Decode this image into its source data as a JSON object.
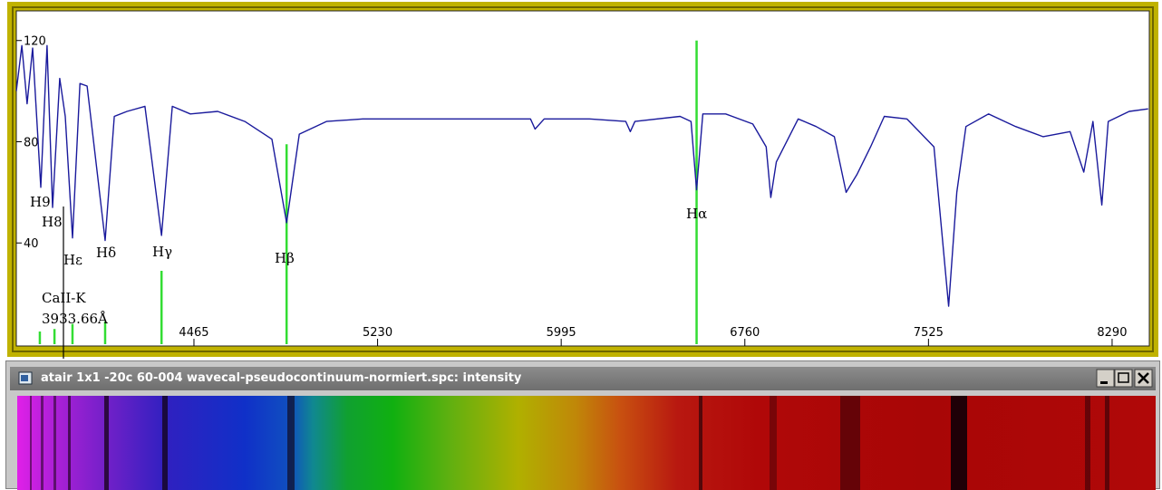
{
  "chart_data": {
    "type": "line",
    "x": [
      3725,
      3748,
      3770,
      3793,
      3827,
      3853,
      3876,
      3906,
      3929,
      3959,
      3990,
      4020,
      4095,
      4133,
      4186,
      4261,
      4330,
      4375,
      4450,
      4564,
      4677,
      4790,
      4851,
      4904,
      5017,
      5168,
      5357,
      5546,
      5735,
      5867,
      5886,
      5924,
      6113,
      6264,
      6283,
      6302,
      6490,
      6536,
      6559,
      6585,
      6680,
      6793,
      6849,
      6868,
      6891,
      6982,
      7057,
      7133,
      7182,
      7227,
      7284,
      7341,
      7435,
      7548,
      7609,
      7643,
      7681,
      7775,
      7888,
      8002,
      8115,
      8172,
      8210,
      8247,
      8274,
      8361,
      8440
    ],
    "values": [
      100,
      118,
      95,
      117,
      62,
      118,
      54,
      105,
      90,
      42,
      103,
      102,
      41,
      90,
      92,
      94,
      43,
      94,
      91,
      92,
      88,
      81,
      48,
      83,
      88,
      89,
      89,
      89,
      89,
      89,
      85,
      89,
      89,
      88,
      84,
      88,
      90,
      88,
      61,
      91,
      91,
      87,
      78,
      58,
      72,
      89,
      86,
      82,
      60,
      67,
      78,
      90,
      89,
      78,
      15,
      60,
      86,
      91,
      86,
      82,
      84,
      68,
      88,
      55,
      88,
      92,
      93
    ],
    "color": "#1a1a9c",
    "reference_lines": {
      "x": [
        3823,
        3884,
        3959,
        4095,
        4330,
        4851,
        6559
      ],
      "values": [
        5,
        6,
        8,
        9,
        29,
        79,
        120
      ],
      "color": "#33dd33"
    },
    "xlim": [
      3725,
      8445
    ],
    "ylim": [
      0,
      131
    ],
    "xticks": [
      4465,
      5230,
      5995,
      6760,
      7525,
      8290
    ],
    "yticks": [
      40,
      80,
      120
    ],
    "annotations": [
      "H9",
      "H8",
      "Hε",
      "Hδ",
      "Hγ",
      "Hβ",
      "Hα",
      "CaII-K",
      "3933.66Å"
    ]
  },
  "window": {
    "title": "atair 1x1 -20c 60-004 wavecal-pseudocontinuum-normiert.spc: intensity"
  }
}
